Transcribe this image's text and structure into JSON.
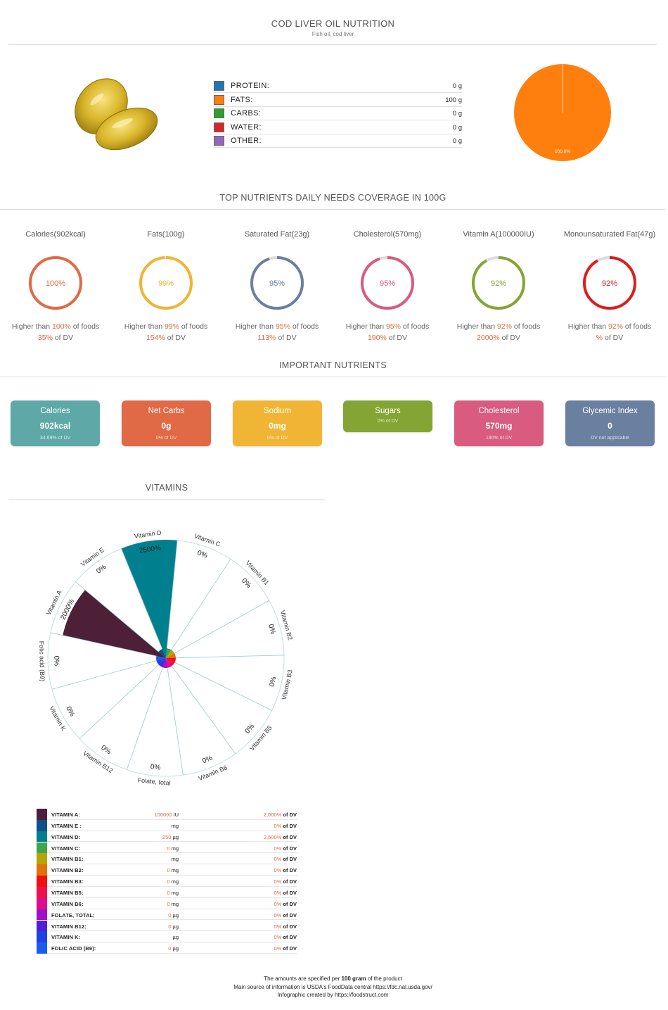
{
  "header": {
    "title": "COD LIVER OIL NUTRITION",
    "subtitle": "Fish oil, cod liver"
  },
  "macros": [
    {
      "label": "PROTEIN:",
      "value": "0 g",
      "color": "#1f77b4"
    },
    {
      "label": "FATS:",
      "value": "100 g",
      "color": "#ff7f0e"
    },
    {
      "label": "CARBS:",
      "value": "0 g",
      "color": "#2ca02c"
    },
    {
      "label": "WATER:",
      "value": "0 g",
      "color": "#d62728"
    },
    {
      "label": "OTHER:",
      "value": "0 g",
      "color": "#9467bd"
    }
  ],
  "macro_pie": {
    "label": "100.0%"
  },
  "coverage": {
    "title": "TOP NUTRIENTS DAILY NEEDS COVERAGE IN 100G",
    "higher_prefix": "Higher than ",
    "higher_suffix": " of foods",
    "dv_suffix": " of DV",
    "items": [
      {
        "name": "Calories(902kcal)",
        "pct": "100%",
        "dv": "35%",
        "color": "#e06a45",
        "fraction": 1.0
      },
      {
        "name": "Fats(100g)",
        "pct": "99%",
        "dv": "154%",
        "color": "#f0b534",
        "fraction": 0.99
      },
      {
        "name": "Saturated Fat(23g)",
        "pct": "95%",
        "dv": "113%",
        "color": "#6a80a0",
        "fraction": 0.95
      },
      {
        "name": "Cholesterol(570mg)",
        "pct": "95%",
        "dv": "190%",
        "color": "#d95b80",
        "fraction": 0.95
      },
      {
        "name": "Vitamin A(100000IU)",
        "pct": "92%",
        "dv": "2000%",
        "color": "#84a534",
        "fraction": 0.92
      },
      {
        "name": "Monounsaturated Fat(47g)",
        "pct": "92%",
        "dv": "%",
        "color": "#dd1c1c",
        "fraction": 0.92
      }
    ]
  },
  "important": {
    "title": "IMPORTANT NUTRIENTS",
    "cards": [
      {
        "name": "Calories",
        "value": "902kcal",
        "dv": "34.69% of DV",
        "color": "#5fa8a8"
      },
      {
        "name": "Net Carbs",
        "value": "0g",
        "dv": "0% of DV",
        "color": "#e06a45"
      },
      {
        "name": "Sodium",
        "value": "0mg",
        "dv": "0% of DV",
        "color": "#f0b534"
      },
      {
        "name": "Sugars",
        "value": "",
        "dv": "0% of DV",
        "color": "#84a534"
      },
      {
        "name": "Cholesterol",
        "value": "570mg",
        "dv": "190% of DV",
        "color": "#d95b80"
      },
      {
        "name": "Glycemic Index",
        "value": "0",
        "dv": "DV not applicable",
        "color": "#6a80a0"
      }
    ]
  },
  "vitamins": {
    "title": "VITAMINS"
  },
  "chart_data": {
    "type": "pie",
    "subtype": "polar-area",
    "categories": [
      "Vitamin C",
      "Vitamin B1",
      "Vitamin B2",
      "Vitamin B3",
      "Vitamin B5",
      "Vitamin B6",
      "Folate, total",
      "Vitamin B12",
      "Vitamin K",
      "Folic acid (B9)",
      "Vitamin A",
      "Vitamin E",
      "Vitamin D"
    ],
    "labels": [
      "0%",
      "0%",
      "0%",
      "0%",
      "0%",
      "0%",
      "0%",
      "0%",
      "0%",
      "0%",
      "2000%",
      "0%",
      "2500%"
    ],
    "values": [
      0,
      0,
      0,
      0,
      0,
      0,
      0,
      0,
      0,
      0,
      2000,
      0,
      2500
    ],
    "colors": [
      "#3fa54f",
      "#b8a400",
      "#e2700f",
      "#f01010",
      "#f0104e",
      "#e00c8a",
      "#a010c8",
      "#5020d8",
      "#2040e8",
      "#1a5cf0",
      "#4d2038",
      "#0f4f8a",
      "#00808e"
    ]
  },
  "vitamin_table": {
    "dv_suffix": " of DV",
    "rows": [
      {
        "name": "VITAMIN A:",
        "num": "100000",
        "unit": " IU",
        "dv": "2,000%",
        "color": "#4d2038"
      },
      {
        "name": "VITAMIN E :",
        "num": "",
        "unit": "mg",
        "dv": "0%",
        "color": "#0f4f8a"
      },
      {
        "name": "VITAMIN D:",
        "num": "250",
        "unit": " µg",
        "dv": "2,500%",
        "color": "#00808e"
      },
      {
        "name": "VITAMIN C:",
        "num": "0",
        "unit": " mg",
        "dv": "0%",
        "color": "#3fa54f"
      },
      {
        "name": "VITAMIN B1:",
        "num": "",
        "unit": "mg",
        "dv": "0%",
        "color": "#b8a400"
      },
      {
        "name": "VITAMIN B2:",
        "num": "0",
        "unit": " mg",
        "dv": "0%",
        "color": "#e2700f"
      },
      {
        "name": "VITAMIN B3:",
        "num": "0",
        "unit": " mg",
        "dv": "0%",
        "color": "#f01010"
      },
      {
        "name": "VITAMIN B5:",
        "num": "0",
        "unit": " mg",
        "dv": "0%",
        "color": "#f0104e"
      },
      {
        "name": "VITAMIN B6:",
        "num": "0",
        "unit": " mg",
        "dv": "0%",
        "color": "#e00c8a"
      },
      {
        "name": "FOLATE, TOTAL:",
        "num": "0",
        "unit": " µg",
        "dv": "0%",
        "color": "#a010c8"
      },
      {
        "name": "VITAMIN B12:",
        "num": "0",
        "unit": " µg",
        "dv": "0%",
        "color": "#5020d8"
      },
      {
        "name": "VITAMIN K:",
        "num": "",
        "unit": "µg",
        "dv": "0%",
        "color": "#2040e8"
      },
      {
        "name": "FOLIC ACID (B9):",
        "num": "0",
        "unit": " µg",
        "dv": "0%",
        "color": "#1a5cf0"
      }
    ]
  },
  "footer": {
    "line1_pre": "The amounts are specified per ",
    "line1_bold": "100 gram",
    "line1_post": " of the product",
    "line2": "Main source of information is USDA's FoodData central https://fdc.nal.usda.gov/",
    "line3": "Infographic created by https://foodstruct.com"
  }
}
